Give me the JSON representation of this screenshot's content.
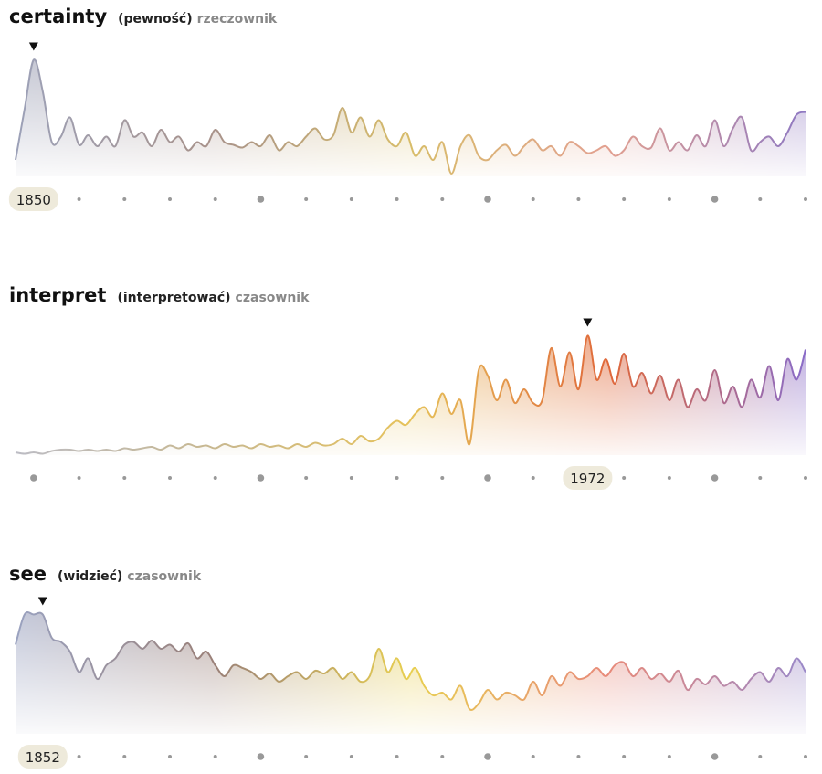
{
  "chart_data": [
    {
      "type": "area",
      "title": "certainty",
      "translation": "(pewność)",
      "part_of_speech": "rzeczownik",
      "highlight": 1850,
      "colors": [
        "#9ca1b8",
        "#a8928a",
        "#d8bd6a",
        "#e2a090",
        "#8e78c2"
      ],
      "xlim": [
        1845,
        2020
      ],
      "ylim": [
        0,
        100
      ],
      "xticks": [
        1850,
        1860,
        1870,
        1880,
        1890,
        1900,
        1910,
        1920,
        1930,
        1940,
        1950,
        1960,
        1970,
        1980,
        1990,
        2000,
        2010,
        2020
      ],
      "x": [
        1846,
        1848,
        1850,
        1852,
        1854,
        1856,
        1858,
        1860,
        1862,
        1864,
        1866,
        1868,
        1870,
        1872,
        1874,
        1876,
        1878,
        1880,
        1882,
        1884,
        1886,
        1888,
        1890,
        1892,
        1894,
        1896,
        1898,
        1900,
        1902,
        1904,
        1906,
        1908,
        1910,
        1912,
        1914,
        1916,
        1918,
        1920,
        1922,
        1924,
        1926,
        1928,
        1930,
        1932,
        1934,
        1936,
        1938,
        1940,
        1942,
        1944,
        1946,
        1948,
        1950,
        1952,
        1954,
        1956,
        1958,
        1960,
        1962,
        1964,
        1966,
        1968,
        1970,
        1972,
        1974,
        1976,
        1978,
        1980,
        1982,
        1984,
        1986,
        1988,
        1990,
        1992,
        1994,
        1996,
        1998,
        2000,
        2002,
        2004,
        2006,
        2008,
        2010,
        2012,
        2014,
        2016,
        2018,
        2020
      ],
      "values": [
        12,
        49,
        85,
        62,
        25,
        29,
        43,
        23,
        30,
        22,
        29,
        22,
        41,
        29,
        32,
        22,
        34,
        25,
        29,
        19,
        25,
        22,
        34,
        25,
        23,
        21,
        25,
        22,
        30,
        19,
        25,
        22,
        29,
        35,
        27,
        30,
        50,
        32,
        43,
        29,
        41,
        27,
        22,
        32,
        15,
        22,
        12,
        25,
        2,
        22,
        30,
        15,
        12,
        19,
        23,
        15,
        22,
        27,
        19,
        22,
        15,
        25,
        22,
        17,
        19,
        22,
        15,
        19,
        29,
        22,
        21,
        35,
        19,
        25,
        19,
        30,
        22,
        41,
        22,
        35,
        43,
        19,
        25,
        29,
        22,
        32,
        45,
        47
      ]
    },
    {
      "type": "area",
      "title": "interpret",
      "translation": "(interpretować)",
      "part_of_speech": "czasownik",
      "highlight": 1972,
      "colors": [
        "#bcbcc4",
        "#c8b890",
        "#e6c25a",
        "#e0683a",
        "#8a6cc8"
      ],
      "xlim": [
        1845,
        2020
      ],
      "ylim": [
        0,
        100
      ],
      "xticks": [
        1850,
        1860,
        1870,
        1880,
        1890,
        1900,
        1910,
        1920,
        1930,
        1940,
        1950,
        1960,
        1970,
        1980,
        1990,
        2000,
        2010,
        2020
      ],
      "x": [
        1846,
        1848,
        1850,
        1852,
        1854,
        1856,
        1858,
        1860,
        1862,
        1864,
        1866,
        1868,
        1870,
        1872,
        1874,
        1876,
        1878,
        1880,
        1882,
        1884,
        1886,
        1888,
        1890,
        1892,
        1894,
        1896,
        1898,
        1900,
        1902,
        1904,
        1906,
        1908,
        1910,
        1912,
        1914,
        1916,
        1918,
        1920,
        1922,
        1924,
        1926,
        1928,
        1930,
        1932,
        1934,
        1936,
        1938,
        1940,
        1942,
        1944,
        1946,
        1948,
        1950,
        1952,
        1954,
        1956,
        1958,
        1960,
        1962,
        1964,
        1966,
        1968,
        1970,
        1972,
        1974,
        1976,
        1978,
        1980,
        1982,
        1984,
        1986,
        1988,
        1990,
        1992,
        1994,
        1996,
        1998,
        2000,
        2002,
        2004,
        2006,
        2008,
        2010,
        2012,
        2014,
        2016,
        2018,
        2020
      ],
      "values": [
        2,
        1,
        2,
        1,
        3,
        4,
        4,
        3,
        4,
        3,
        4,
        3,
        5,
        4,
        5,
        6,
        4,
        7,
        5,
        8,
        6,
        7,
        5,
        8,
        6,
        7,
        5,
        8,
        6,
        7,
        5,
        8,
        6,
        9,
        7,
        8,
        12,
        8,
        14,
        10,
        12,
        20,
        25,
        22,
        30,
        35,
        28,
        45,
        30,
        40,
        8,
        62,
        58,
        40,
        55,
        38,
        48,
        38,
        40,
        78,
        50,
        75,
        48,
        87,
        55,
        70,
        52,
        74,
        50,
        60,
        45,
        58,
        40,
        55,
        35,
        48,
        40,
        62,
        38,
        50,
        35,
        55,
        42,
        65,
        40,
        70,
        55,
        77
      ]
    },
    {
      "type": "area",
      "title": "see",
      "translation": "(widzieć)",
      "part_of_speech": "czasownik",
      "highlight": 1852,
      "colors": [
        "#9aa2c0",
        "#9a8078",
        "#e8cf50",
        "#e88a7a",
        "#9a88c8"
      ],
      "xlim": [
        1845,
        2020
      ],
      "ylim": [
        0,
        100
      ],
      "xticks": [
        1850,
        1860,
        1870,
        1880,
        1890,
        1900,
        1910,
        1920,
        1930,
        1940,
        1950,
        1960,
        1970,
        1980,
        1990,
        2000,
        2010,
        2020
      ],
      "x": [
        1846,
        1848,
        1850,
        1852,
        1854,
        1856,
        1858,
        1860,
        1862,
        1864,
        1866,
        1868,
        1870,
        1872,
        1874,
        1876,
        1878,
        1880,
        1882,
        1884,
        1886,
        1888,
        1890,
        1892,
        1894,
        1896,
        1898,
        1900,
        1902,
        1904,
        1906,
        1908,
        1910,
        1912,
        1914,
        1916,
        1918,
        1920,
        1922,
        1924,
        1926,
        1928,
        1930,
        1932,
        1934,
        1936,
        1938,
        1940,
        1942,
        1944,
        1946,
        1948,
        1950,
        1952,
        1954,
        1956,
        1958,
        1960,
        1962,
        1964,
        1966,
        1968,
        1970,
        1972,
        1974,
        1976,
        1978,
        1980,
        1982,
        1984,
        1986,
        1988,
        1990,
        1992,
        1994,
        1996,
        1998,
        2000,
        2002,
        2004,
        2006,
        2008,
        2010,
        2012,
        2014,
        2016,
        2018,
        2020
      ],
      "values": [
        65,
        87,
        87,
        87,
        70,
        67,
        60,
        45,
        55,
        40,
        50,
        55,
        65,
        67,
        62,
        68,
        62,
        65,
        60,
        66,
        55,
        60,
        50,
        42,
        50,
        48,
        45,
        40,
        44,
        38,
        42,
        45,
        40,
        46,
        44,
        48,
        40,
        45,
        38,
        42,
        62,
        45,
        55,
        40,
        48,
        35,
        28,
        30,
        25,
        35,
        18,
        22,
        32,
        25,
        30,
        28,
        25,
        38,
        28,
        42,
        35,
        45,
        40,
        42,
        48,
        42,
        50,
        52,
        42,
        48,
        40,
        44,
        38,
        46,
        32,
        40,
        36,
        42,
        35,
        38,
        32,
        40,
        45,
        38,
        48,
        42,
        55,
        45
      ]
    }
  ]
}
